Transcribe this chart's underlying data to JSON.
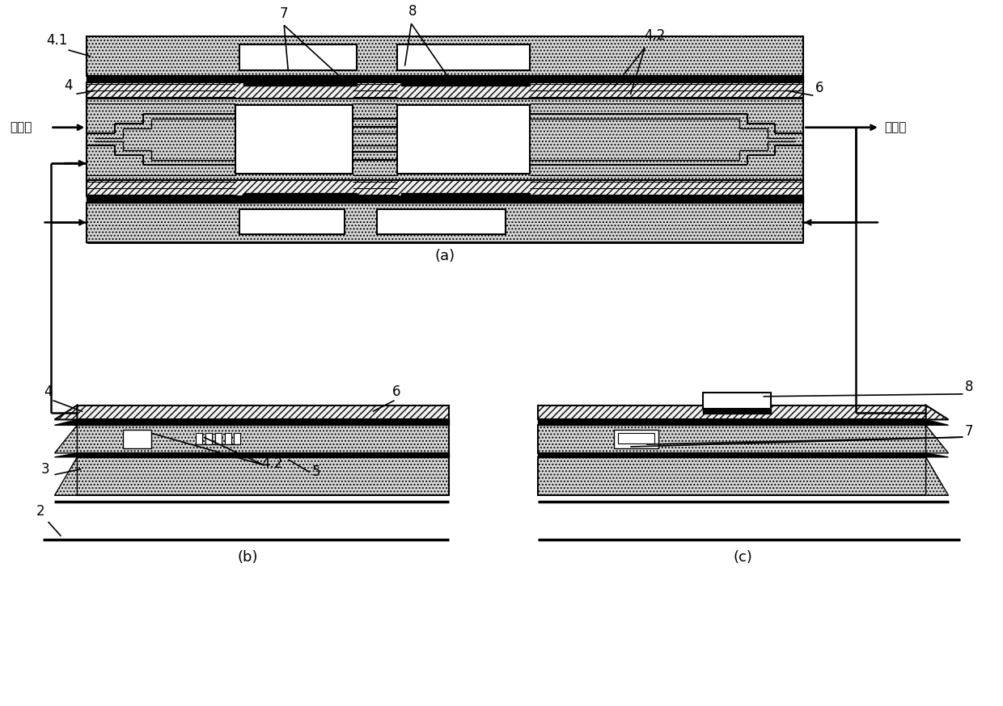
{
  "background_color": "#ffffff",
  "figure_width": 12.4,
  "figure_height": 8.74,
  "text_input": "入射光",
  "text_output": "调制光",
  "caption_a": "(a)",
  "caption_b": "(b)",
  "caption_c": "(c)",
  "labels": {
    "41": "4.1",
    "4": "4",
    "7": "7",
    "8": "8",
    "42": "4.2",
    "6": "6",
    "3": "3",
    "5": "5",
    "2": "2"
  },
  "colors": {
    "black": "#000000",
    "white": "#ffffff",
    "dot_bg": "#d8d8d8",
    "hatch_bg": "#f0f0f0"
  }
}
